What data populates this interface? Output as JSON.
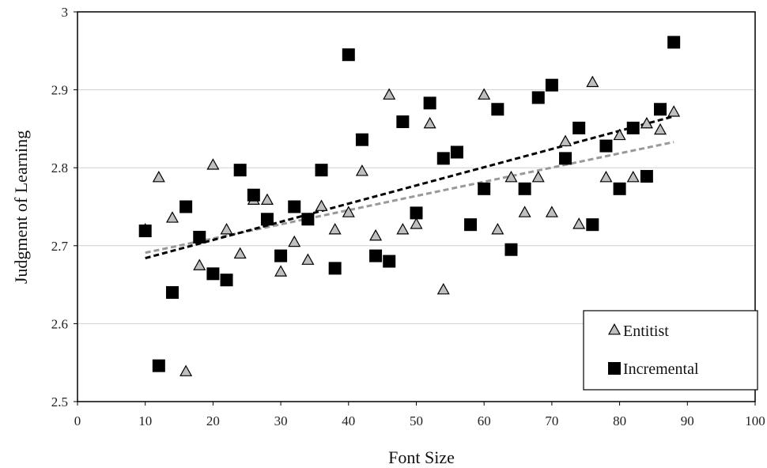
{
  "chart_data": {
    "type": "scatter",
    "title": "",
    "xlabel": "Font Size",
    "ylabel": "Judgment of Learning",
    "xlim": [
      0,
      100
    ],
    "ylim": [
      2.5,
      3.0
    ],
    "xticks": [
      0,
      10,
      20,
      30,
      40,
      50,
      60,
      70,
      80,
      90,
      100
    ],
    "xtick_labels": [
      "0",
      "10",
      "20",
      "30",
      "40",
      "50",
      "60",
      "70",
      "80",
      "90",
      "100"
    ],
    "yticks": [
      2.5,
      2.6,
      2.7,
      2.8,
      2.9,
      3.0
    ],
    "ytick_labels": [
      "2.5",
      "2.6",
      "2.7",
      "2.8",
      "2.9",
      "3"
    ],
    "grid": "horizontal",
    "legend_position": "bottom-right",
    "series": [
      {
        "name": "Entitist",
        "marker": "triangle",
        "color": "#bfbfbf",
        "trendline_color": "#999999",
        "trendline": {
          "x": [
            10,
            88
          ],
          "y": [
            2.691,
            2.833
          ]
        },
        "points": [
          [
            10,
            2.72
          ],
          [
            12,
            2.787
          ],
          [
            14,
            2.735
          ],
          [
            16,
            2.538
          ],
          [
            18,
            2.674
          ],
          [
            20,
            2.803
          ],
          [
            22,
            2.72
          ],
          [
            24,
            2.689
          ],
          [
            26,
            2.758
          ],
          [
            28,
            2.758
          ],
          [
            30,
            2.666
          ],
          [
            32,
            2.704
          ],
          [
            34,
            2.681
          ],
          [
            36,
            2.75
          ],
          [
            38,
            2.72
          ],
          [
            40,
            2.742
          ],
          [
            42,
            2.795
          ],
          [
            44,
            2.712
          ],
          [
            46,
            2.893
          ],
          [
            48,
            2.72
          ],
          [
            50,
            2.727
          ],
          [
            52,
            2.856
          ],
          [
            54,
            2.643
          ],
          [
            60,
            2.893
          ],
          [
            62,
            2.72
          ],
          [
            64,
            2.787
          ],
          [
            66,
            2.742
          ],
          [
            68,
            2.787
          ],
          [
            70,
            2.742
          ],
          [
            72,
            2.833
          ],
          [
            74,
            2.727
          ],
          [
            76,
            2.909
          ],
          [
            78,
            2.787
          ],
          [
            80,
            2.841
          ],
          [
            82,
            2.787
          ],
          [
            84,
            2.856
          ],
          [
            86,
            2.848
          ],
          [
            88,
            2.871
          ]
        ]
      },
      {
        "name": "Incremental",
        "marker": "square",
        "color": "#000000",
        "trendline_color": "#000000",
        "trendline": {
          "x": [
            10,
            88
          ],
          "y": [
            2.684,
            2.866
          ]
        },
        "points": [
          [
            10,
            2.719
          ],
          [
            12,
            2.546
          ],
          [
            14,
            2.64
          ],
          [
            16,
            2.75
          ],
          [
            18,
            2.711
          ],
          [
            20,
            2.664
          ],
          [
            22,
            2.656
          ],
          [
            24,
            2.797
          ],
          [
            26,
            2.765
          ],
          [
            28,
            2.734
          ],
          [
            30,
            2.687
          ],
          [
            32,
            2.75
          ],
          [
            34,
            2.734
          ],
          [
            36,
            2.797
          ],
          [
            38,
            2.671
          ],
          [
            40,
            2.945
          ],
          [
            42,
            2.836
          ],
          [
            44,
            2.687
          ],
          [
            46,
            2.68
          ],
          [
            48,
            2.859
          ],
          [
            50,
            2.742
          ],
          [
            52,
            2.883
          ],
          [
            54,
            2.812
          ],
          [
            56,
            2.82
          ],
          [
            58,
            2.727
          ],
          [
            60,
            2.773
          ],
          [
            62,
            2.875
          ],
          [
            64,
            2.695
          ],
          [
            66,
            2.773
          ],
          [
            68,
            2.89
          ],
          [
            70,
            2.906
          ],
          [
            72,
            2.812
          ],
          [
            74,
            2.851
          ],
          [
            76,
            2.727
          ],
          [
            78,
            2.828
          ],
          [
            80,
            2.773
          ],
          [
            82,
            2.851
          ],
          [
            84,
            2.789
          ],
          [
            86,
            2.875
          ],
          [
            88,
            2.961
          ]
        ]
      }
    ]
  }
}
